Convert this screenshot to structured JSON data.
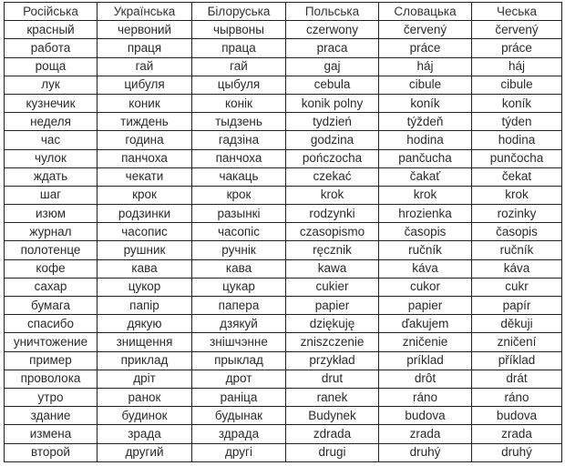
{
  "table": {
    "headers": [
      "Російська",
      "Українська",
      "Білоруська",
      "Польська",
      "Словацька",
      "Чеська"
    ],
    "rows": [
      [
        "красный",
        "червоний",
        "чырвоны",
        "czerwony",
        "červený",
        "červený"
      ],
      [
        "работа",
        "праця",
        "праца",
        "praca",
        "práce",
        "práce"
      ],
      [
        "роща",
        "гай",
        "гай",
        "gaj",
        "háj",
        "háj"
      ],
      [
        "лук",
        "цибуля",
        "цыбуля",
        "cebula",
        "cibule",
        "cibule"
      ],
      [
        "кузнечик",
        "коник",
        "конік",
        "konik polny",
        "koník",
        "koník"
      ],
      [
        "неделя",
        "тиждень",
        "тыдзень",
        "tydzień",
        "týždeň",
        "týden"
      ],
      [
        "час",
        "година",
        "гадзіна",
        "godzina",
        "hodina",
        "hodina"
      ],
      [
        "чулок",
        "панчоха",
        "панчоха",
        "pończocha",
        "pančucha",
        "punčocha"
      ],
      [
        "ждать",
        "чекати",
        "чакаць",
        "czekać",
        "čakať",
        "čekat"
      ],
      [
        "шаг",
        "крок",
        "крок",
        "krok",
        "krok",
        "krok"
      ],
      [
        "изюм",
        "родзинки",
        "разынкі",
        "rodzynki",
        "hrozienka",
        "rozinky"
      ],
      [
        "журнал",
        "часопис",
        "часопіс",
        "czasopismo",
        "časopis",
        "časopis"
      ],
      [
        "полотенце",
        "рушник",
        "ручнік",
        "ręcznik",
        "ručník",
        "ručník"
      ],
      [
        "кофе",
        "кава",
        "кава",
        "kawa",
        "káva",
        "káva"
      ],
      [
        "сахар",
        "цукор",
        "цукар",
        "cukier",
        "cukor",
        "cukr"
      ],
      [
        "бумага",
        "папір",
        "папера",
        "papier",
        "papier",
        "papír"
      ],
      [
        "спасибо",
        "дякую",
        "дзякуй",
        "dziękuję",
        "ďakujem",
        "děkuji"
      ],
      [
        "уничтожение",
        "знищення",
        "знішчэнне",
        "zniszczenie",
        "zničenie",
        "zničení"
      ],
      [
        "пример",
        "приклад",
        "прыклад",
        "przykład",
        "príklad",
        "příklad"
      ],
      [
        "проволока",
        "дріт",
        "дрот",
        "drut",
        "drôt",
        "drát"
      ],
      [
        "утро",
        "ранок",
        "раніца",
        "ranek",
        "ráno",
        "ráno"
      ],
      [
        "здание",
        "будинок",
        "будынак",
        "Budynek",
        "budova",
        "budova"
      ],
      [
        "измена",
        "зрада",
        "здрада",
        "zdrada",
        "zrada",
        "zrada"
      ],
      [
        "второй",
        "другий",
        "другі",
        "drugi",
        "druhý",
        "druhý"
      ]
    ]
  }
}
